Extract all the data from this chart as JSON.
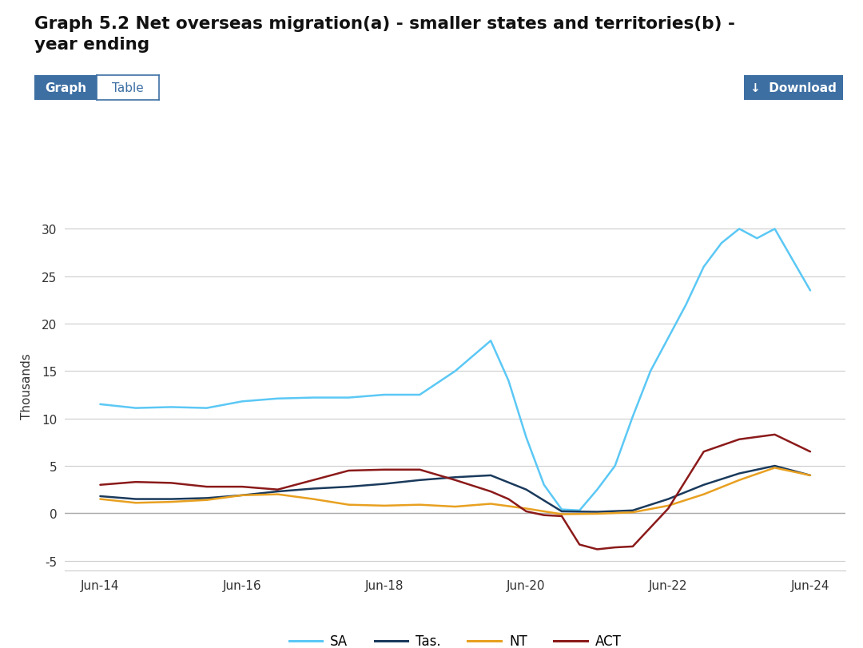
{
  "title": "Graph 5.2 Net overseas migration(a) - smaller states and territories(b) -\nyear ending",
  "ylabel": "Thousands",
  "ylim": [
    -6,
    33
  ],
  "yticks": [
    -5,
    0,
    5,
    10,
    15,
    20,
    25,
    30
  ],
  "background_color": "#ffffff",
  "plot_bg_color": "#ffffff",
  "grid_color": "#cccccc",
  "series": {
    "SA": {
      "color": "#5bc8f5",
      "linewidth": 1.8,
      "x": [
        2014.5,
        2015.0,
        2015.5,
        2016.0,
        2016.5,
        2017.0,
        2017.5,
        2018.0,
        2018.5,
        2019.0,
        2019.5,
        2020.0,
        2020.25,
        2020.5,
        2020.75,
        2021.0,
        2021.25,
        2021.5,
        2021.75,
        2022.0,
        2022.25,
        2022.5,
        2022.75,
        2023.0,
        2023.25,
        2023.5,
        2023.75,
        2024.0,
        2024.5
      ],
      "y": [
        11.5,
        11.1,
        11.2,
        11.1,
        11.8,
        12.1,
        12.2,
        12.2,
        12.5,
        12.5,
        15.0,
        18.2,
        14.0,
        8.0,
        3.0,
        0.4,
        0.3,
        2.5,
        5.0,
        10.2,
        15.0,
        18.5,
        22.0,
        26.0,
        28.5,
        30.0,
        29.0,
        30.0,
        23.5
      ]
    },
    "Tas.": {
      "color": "#1a3a5c",
      "linewidth": 1.8,
      "x": [
        2014.5,
        2015.0,
        2015.5,
        2016.0,
        2016.5,
        2017.0,
        2017.5,
        2018.0,
        2018.5,
        2019.0,
        2019.5,
        2020.0,
        2020.5,
        2021.0,
        2021.5,
        2022.0,
        2022.5,
        2023.0,
        2023.5,
        2024.0,
        2024.5
      ],
      "y": [
        1.8,
        1.5,
        1.5,
        1.6,
        1.9,
        2.3,
        2.6,
        2.8,
        3.1,
        3.5,
        3.8,
        4.0,
        2.5,
        0.2,
        0.15,
        0.3,
        1.5,
        3.0,
        4.2,
        5.0,
        4.0
      ]
    },
    "NT": {
      "color": "#e8a020",
      "linewidth": 1.8,
      "x": [
        2014.5,
        2015.0,
        2015.5,
        2016.0,
        2016.5,
        2017.0,
        2017.5,
        2018.0,
        2018.5,
        2019.0,
        2019.5,
        2020.0,
        2020.5,
        2021.0,
        2021.5,
        2022.0,
        2022.5,
        2023.0,
        2023.5,
        2024.0,
        2024.5
      ],
      "y": [
        1.5,
        1.1,
        1.2,
        1.4,
        1.9,
        2.0,
        1.5,
        0.9,
        0.8,
        0.9,
        0.7,
        1.0,
        0.5,
        -0.1,
        -0.05,
        0.1,
        0.8,
        2.0,
        3.5,
        4.8,
        4.0
      ]
    },
    "ACT": {
      "color": "#8b1a1a",
      "linewidth": 1.8,
      "x": [
        2014.5,
        2015.0,
        2015.5,
        2016.0,
        2016.5,
        2017.0,
        2017.5,
        2018.0,
        2018.5,
        2019.0,
        2019.5,
        2020.0,
        2020.25,
        2020.5,
        2020.75,
        2021.0,
        2021.25,
        2021.5,
        2021.75,
        2022.0,
        2022.5,
        2023.0,
        2023.5,
        2024.0,
        2024.5
      ],
      "y": [
        3.0,
        3.3,
        3.2,
        2.8,
        2.8,
        2.5,
        3.5,
        4.5,
        4.6,
        4.6,
        3.5,
        2.3,
        1.5,
        0.2,
        -0.2,
        -0.3,
        -3.3,
        -3.8,
        -3.6,
        -3.5,
        0.5,
        6.5,
        7.8,
        8.3,
        6.5
      ]
    }
  },
  "xtick_labels": [
    "Jun-14",
    "Jun-16",
    "Jun-18",
    "Jun-20",
    "Jun-22",
    "Jun-24"
  ],
  "xtick_positions": [
    2014.5,
    2016.5,
    2018.5,
    2020.5,
    2022.5,
    2024.5
  ],
  "legend_order": [
    "SA",
    "Tas.",
    "NT",
    "ACT"
  ],
  "button_graph_color": "#3d6fa3",
  "button_download_color": "#3d6fa3"
}
